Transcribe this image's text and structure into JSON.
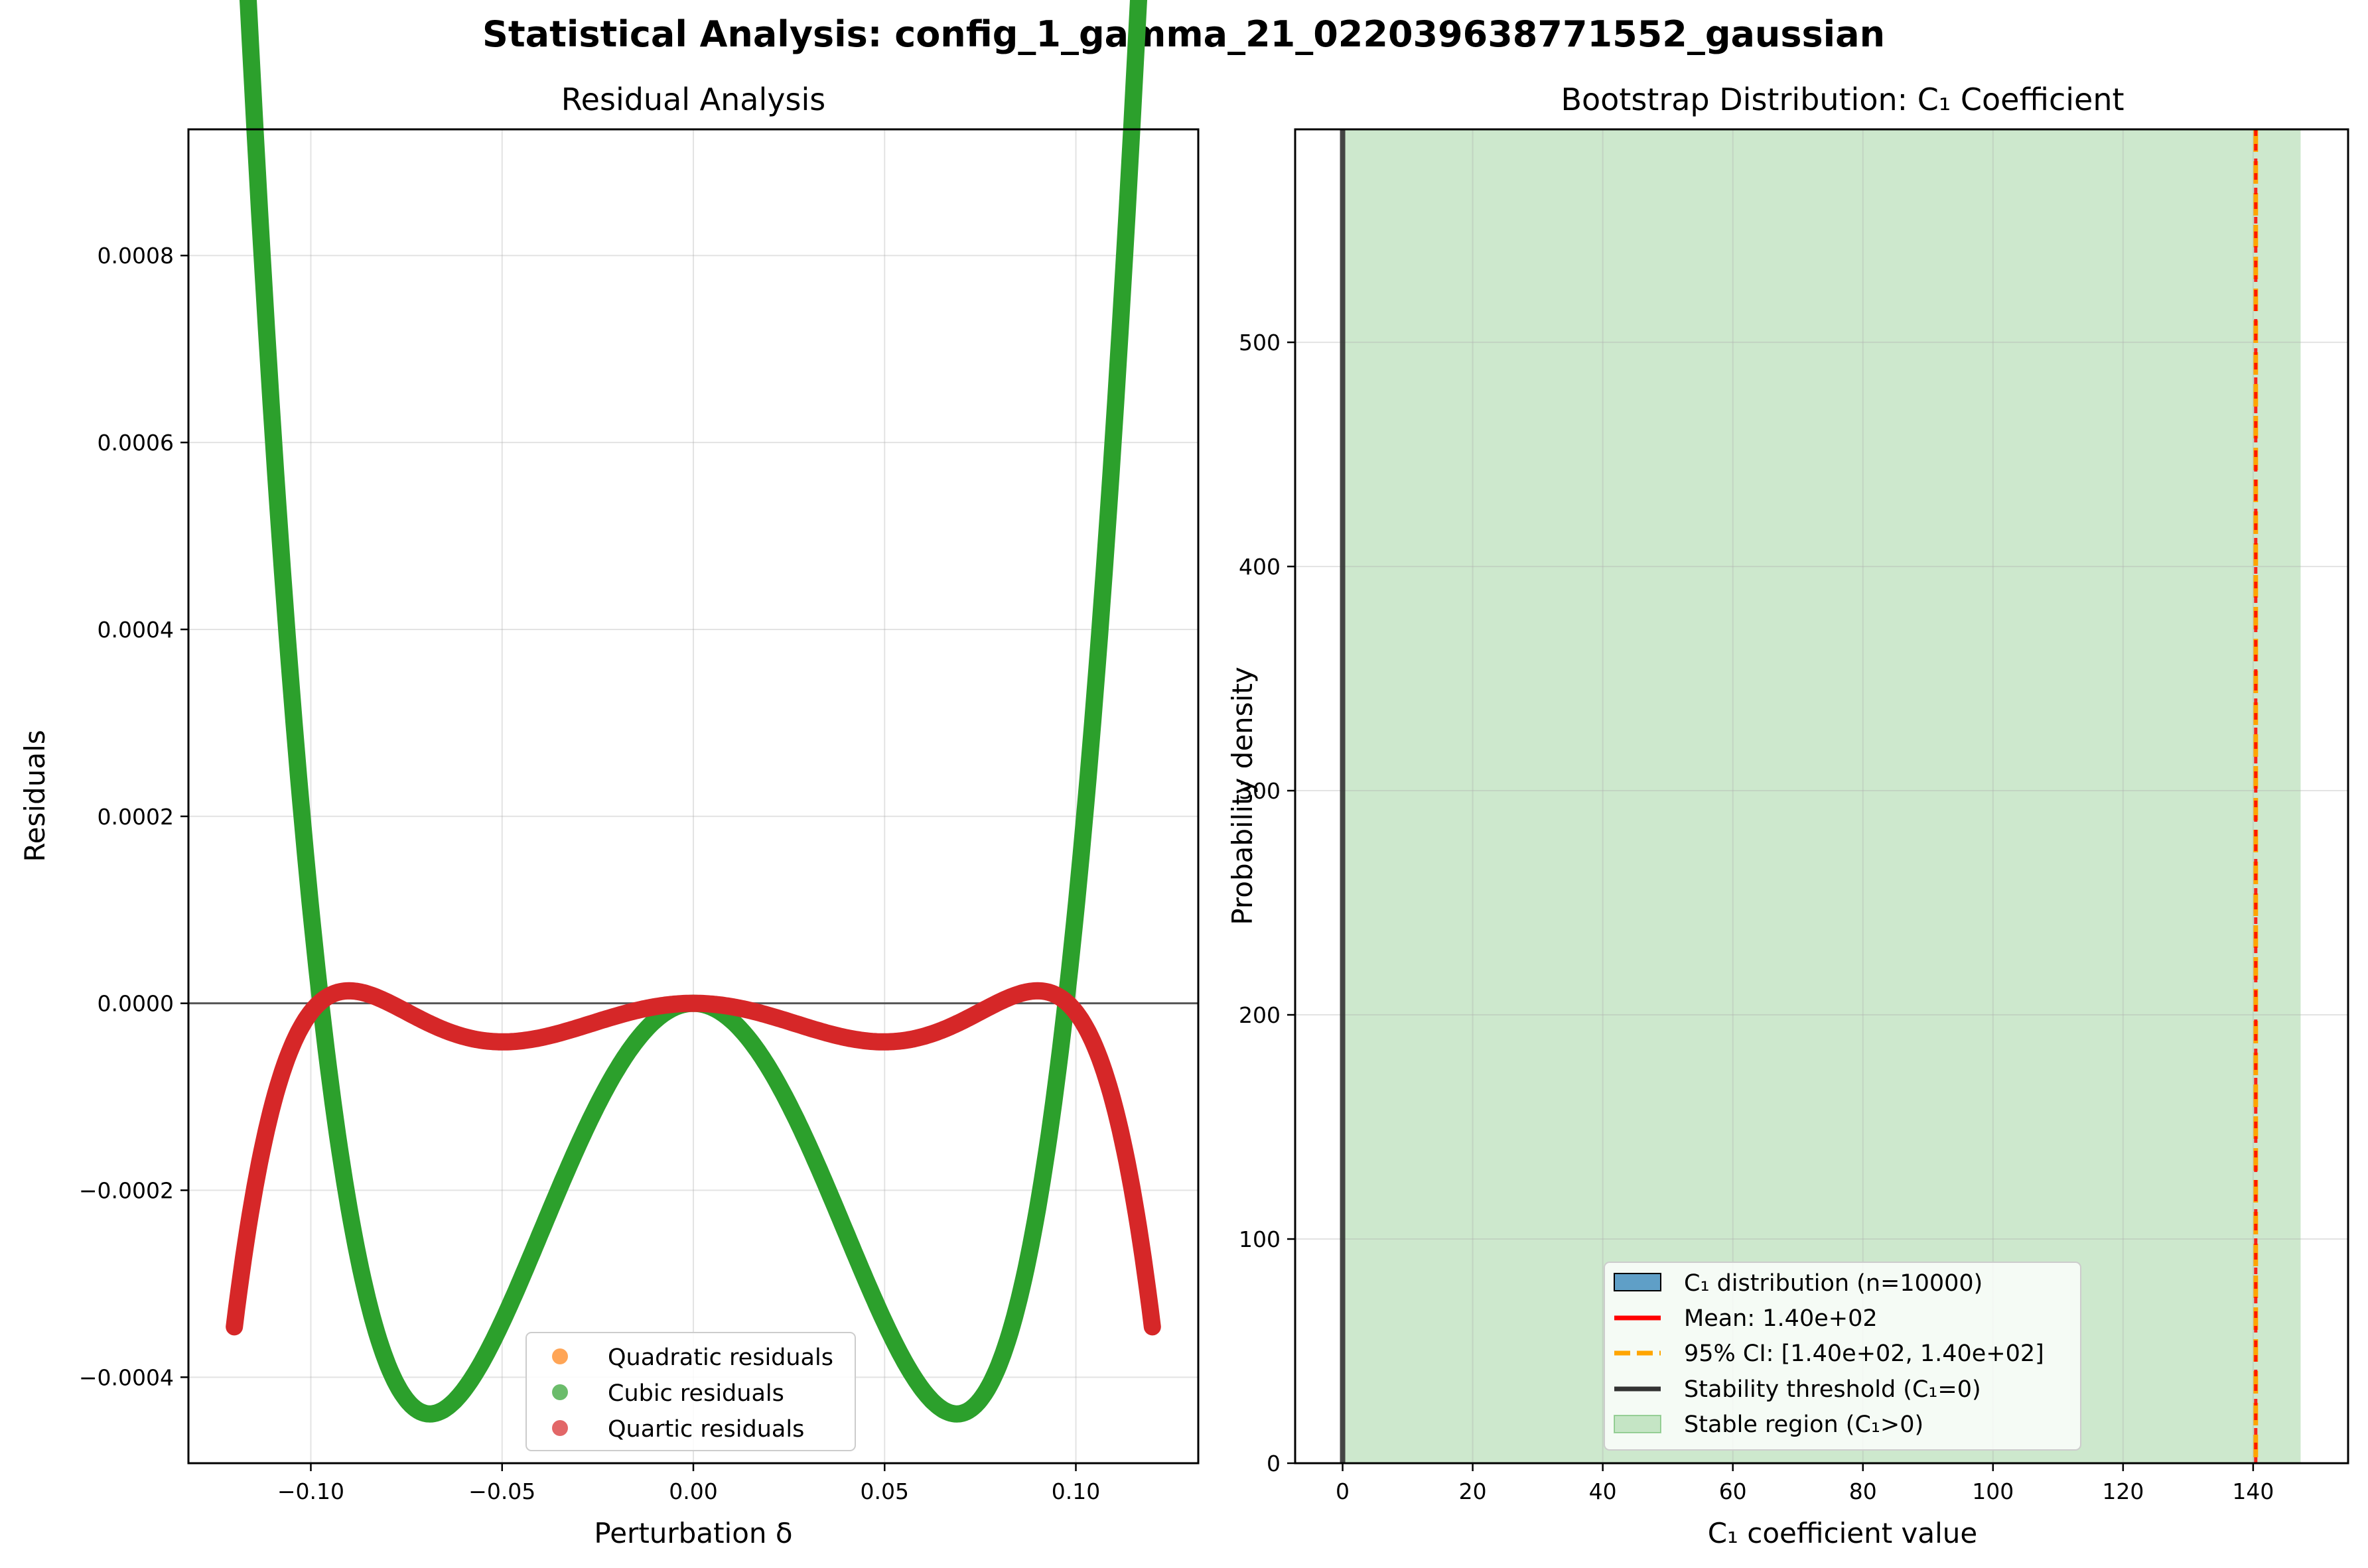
{
  "figure": {
    "suptitle": "Statistical Analysis: config_1_gamma_21_022039638771552_gaussian"
  },
  "chart_data": [
    {
      "type": "scatter",
      "title": "Residual Analysis",
      "xlabel": "Perturbation δ",
      "ylabel": "Residuals",
      "xlim": [
        -0.132,
        0.132
      ],
      "ylim": [
        -0.000492,
        0.000935
      ],
      "xticks": [
        -0.1,
        -0.05,
        0.0,
        0.05,
        0.1
      ],
      "xtick_labels": [
        "−0.10",
        "−0.05",
        "0.00",
        "0.05",
        "0.10"
      ],
      "yticks": [
        -0.0004,
        -0.0002,
        0.0,
        0.0002,
        0.0004,
        0.0006,
        0.0008
      ],
      "ytick_labels": [
        "−0.0004",
        "−0.0002",
        "0.0000",
        "0.0002",
        "0.0004",
        "0.0006",
        "0.0008"
      ],
      "grid": true,
      "legend_position": "lower-center",
      "x_range": [
        -0.12,
        0.12
      ],
      "series": [
        {
          "name": "Quadratic residuals",
          "color": "#ff7f0e",
          "coefficients_power_series": [
            0,
            0,
            -0.3,
            0,
            0
          ]
        },
        {
          "name": "Cubic residuals",
          "color": "#2ca02c",
          "coefficients_power_series": [
            0,
            0,
            -0.18523,
            0,
            19.5255
          ]
        },
        {
          "name": "Quartic residuals",
          "color": "#d62728",
          "coefficients_power_series": [
            0,
            0,
            -0.03706,
            0,
            9.7612,
            0,
            -615.05
          ]
        }
      ],
      "reference_line_y": 0
    },
    {
      "type": "bar",
      "title": "Bootstrap Distribution: C₁ Coefficient",
      "xlabel": "C₁ coefficient value",
      "ylabel": "Probability density",
      "xlim": [
        -7.3,
        154.6
      ],
      "ylim": [
        0,
        595
      ],
      "xticks": [
        0,
        20,
        40,
        60,
        80,
        100,
        120,
        140
      ],
      "xtick_labels": [
        "0",
        "20",
        "40",
        "60",
        "80",
        "100",
        "120",
        "140"
      ],
      "yticks": [
        0,
        100,
        200,
        300,
        400,
        500
      ],
      "ytick_labels": [
        "0",
        "100",
        "200",
        "300",
        "400",
        "500"
      ],
      "grid": true,
      "legend_position": "lower-right",
      "mean": 140.4,
      "ci": [
        140.4,
        140.4
      ],
      "stable_region": [
        0,
        147.3
      ],
      "stability_threshold": 0,
      "legend": [
        {
          "label": "C₁ distribution (n=10000)",
          "kind": "patch",
          "color": "#1f77b4"
        },
        {
          "label": "Mean: 1.40e+02",
          "kind": "line",
          "color": "#ff0000"
        },
        {
          "label": "95% CI: [1.40e+02, 1.40e+02]",
          "kind": "dashed",
          "color": "#ffa500"
        },
        {
          "label": "Stability threshold (C₁=0)",
          "kind": "line",
          "color": "#333333"
        },
        {
          "label": "Stable region (C₁>0)",
          "kind": "patch",
          "color": "#cce5cc"
        }
      ]
    }
  ]
}
